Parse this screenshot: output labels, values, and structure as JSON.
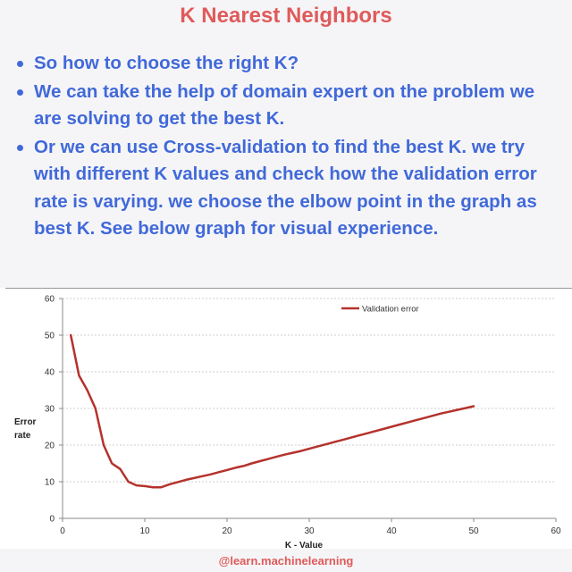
{
  "title": "K Nearest Neighbors",
  "bullets": [
    "So how to choose the right K?",
    "We can take the help of domain expert on the problem we are solving to get the best K.",
    "Or we can use Cross-validation to find the best  K. we try with different K values and check how the validation error rate is varying. we choose the elbow point in the graph as best K. See below graph for visual experience."
  ],
  "chart_data": {
    "type": "line",
    "xlabel": "K - Value",
    "ylabel": "Error rate",
    "xlim": [
      0,
      60
    ],
    "ylim": [
      0,
      60
    ],
    "xticks": [
      0,
      10,
      20,
      30,
      40,
      50,
      60
    ],
    "yticks": [
      0,
      10,
      20,
      30,
      40,
      50,
      60
    ],
    "grid": true,
    "legend_position": "top-right",
    "series": [
      {
        "name": "Validation error",
        "color": "#b5322c",
        "x": [
          1,
          2,
          3,
          4,
          5,
          6,
          7,
          8,
          9,
          10,
          11,
          12,
          13,
          14,
          15,
          16,
          17,
          18,
          19,
          20,
          21,
          22,
          23,
          24,
          25,
          26,
          27,
          28,
          29,
          30,
          31,
          32,
          33,
          34,
          35,
          36,
          37,
          38,
          39,
          40,
          41,
          42,
          43,
          44,
          45,
          46,
          47,
          48,
          49,
          50
        ],
        "y": [
          50,
          39,
          35,
          30,
          20,
          15,
          13.5,
          10,
          9,
          8.8,
          8.5,
          8.5,
          9.3,
          9.9,
          10.5,
          11,
          11.5,
          12,
          12.6,
          13.2,
          13.8,
          14.3,
          15,
          15.6,
          16.2,
          16.8,
          17.4,
          17.9,
          18.4,
          19,
          19.6,
          20.2,
          20.8,
          21.4,
          22,
          22.6,
          23.2,
          23.8,
          24.4,
          25,
          25.6,
          26.2,
          26.8,
          27.4,
          28,
          28.6,
          29.1,
          29.6,
          30.1,
          30.6
        ]
      }
    ]
  },
  "footer": "@learn.machinelearning"
}
